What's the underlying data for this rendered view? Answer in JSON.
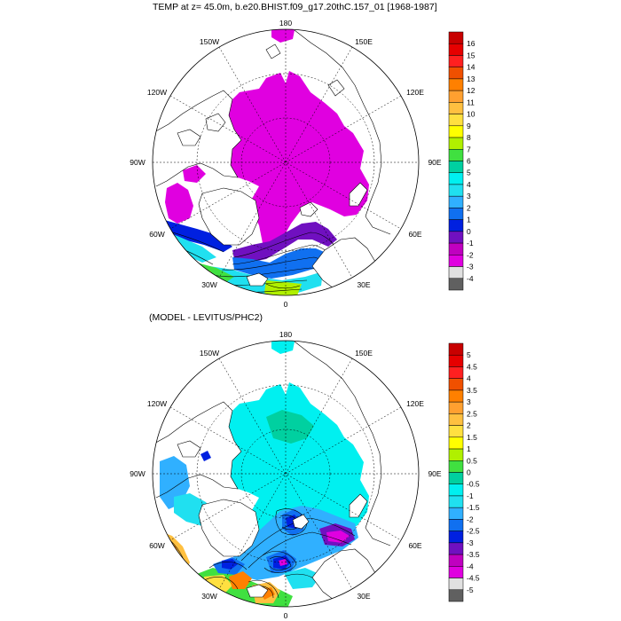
{
  "panel1": {
    "title": "TEMP at z=  45.0m, b.e20.BHIST.f09_g17.20thC.157_01 [1968-1987]",
    "lon_labels": [
      "180",
      "150E",
      "120E",
      "90E",
      "60E",
      "30E",
      "0",
      "30W",
      "60W",
      "90W",
      "120W",
      "150W"
    ],
    "colorbar": {
      "labels": [
        "16",
        "15",
        "14",
        "13",
        "12",
        "11",
        "10",
        "9",
        "8",
        "7",
        "6",
        "5",
        "4",
        "3",
        "2",
        "1",
        "0",
        "-1",
        "-2",
        "-3",
        "-4"
      ],
      "colors": [
        "#c80000",
        "#e60000",
        "#ff2020",
        "#f05000",
        "#ff8000",
        "#ffa030",
        "#ffc040",
        "#ffe040",
        "#ffff00",
        "#b0f000",
        "#40e040",
        "#00d0a0",
        "#00f0f0",
        "#20e0f0",
        "#30b0ff",
        "#1070f0",
        "#0020e0",
        "#7010c0",
        "#c000c0",
        "#e000e0",
        "#e0e0e0",
        "#606060"
      ]
    }
  },
  "panel2": {
    "title": "(MODEL - LEVITUS/PHC2)",
    "lon_labels": [
      "180",
      "150E",
      "120E",
      "90E",
      "60E",
      "30E",
      "0",
      "30W",
      "60W",
      "90W",
      "120W",
      "150W"
    ],
    "colorbar": {
      "labels": [
        "5",
        "4.5",
        "4",
        "3.5",
        "3",
        "2.5",
        "2",
        "1.5",
        "1",
        "0.5",
        "0",
        "-0.5",
        "-1",
        "-1.5",
        "-2",
        "-2.5",
        "-3",
        "-3.5",
        "-4",
        "-4.5",
        "-5"
      ],
      "colors": [
        "#c80000",
        "#e60000",
        "#ff2020",
        "#f05000",
        "#ff8000",
        "#ffa030",
        "#ffc040",
        "#ffe040",
        "#ffff00",
        "#b0f000",
        "#40e040",
        "#00d0a0",
        "#00f0f0",
        "#20e0f0",
        "#30b0ff",
        "#1070f0",
        "#0020e0",
        "#7010c0",
        "#c000c0",
        "#e000e0",
        "#e0e0e0",
        "#606060"
      ]
    }
  }
}
